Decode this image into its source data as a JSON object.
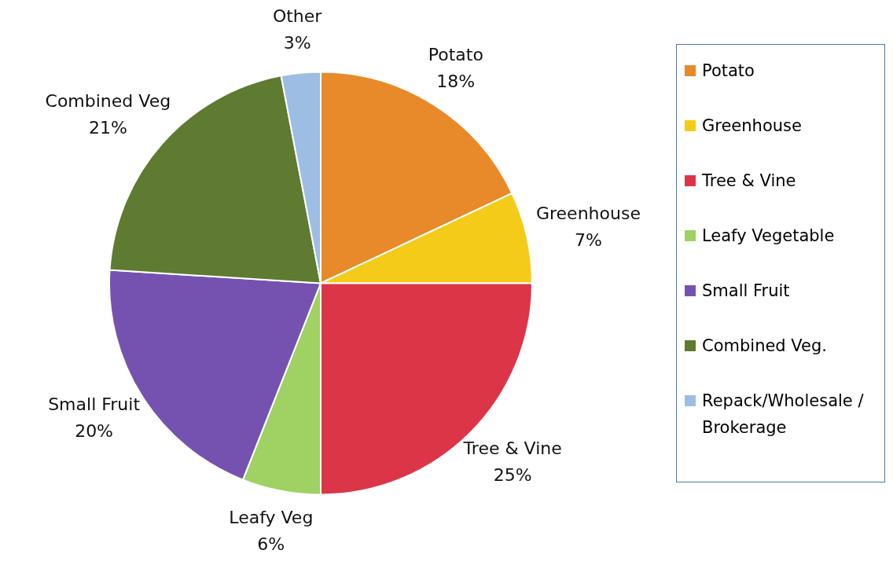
{
  "chart_data": {
    "type": "pie",
    "categories": [
      "Potato",
      "Greenhouse",
      "Tree & Vine",
      "Leafy Vegetable",
      "Small Fruit",
      "Combined Veg.",
      "Repack/Wholesale / Brokerage"
    ],
    "values": [
      18,
      7,
      25,
      6,
      20,
      21,
      3
    ],
    "colors": [
      "#e8892a",
      "#f5cb1a",
      "#dc3548",
      "#9fd163",
      "#7652b0",
      "#5f7a31",
      "#9dbde3"
    ],
    "value_labels": [
      "Potato\n18%",
      "Greenhouse\n7%",
      "Tree & Vine\n25%",
      "Leafy Veg\n6%",
      "Small Fruit\n20%",
      "Combined Veg\n21%",
      "Other\n3%"
    ],
    "legend": "right"
  }
}
